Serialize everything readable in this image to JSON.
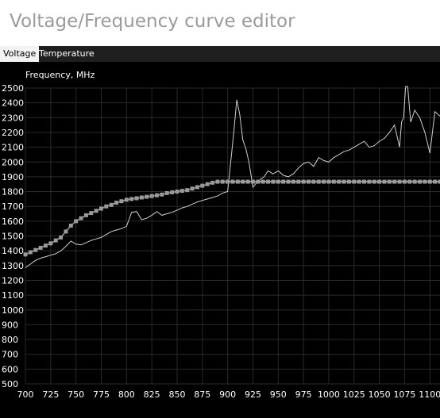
{
  "window": {
    "title": "Voltage/Frequency curve editor"
  },
  "tabs": [
    {
      "label": "Voltage",
      "active": true
    },
    {
      "label": "Temperature",
      "active": false
    }
  ],
  "chart_data": {
    "type": "line",
    "ylabel": "Frequency, MHz",
    "xlabel": "",
    "xlim": [
      700,
      1110
    ],
    "ylim": [
      500,
      2500
    ],
    "x_ticks": [
      700,
      725,
      750,
      775,
      800,
      825,
      850,
      875,
      900,
      925,
      950,
      975,
      1000,
      1025,
      1050,
      1075,
      1100
    ],
    "y_ticks": [
      500,
      600,
      700,
      800,
      900,
      1000,
      1100,
      1200,
      1300,
      1400,
      1500,
      1600,
      1700,
      1800,
      1900,
      2000,
      2100,
      2200,
      2300,
      2400,
      2500
    ],
    "grid": true,
    "colors": {
      "background": "#000000",
      "grid": "#2a2a2a",
      "curve_line": "#d0d0d0",
      "curve_points": "#9a9a9a",
      "max_line": "#c8c8c8"
    },
    "series": [
      {
        "style": "line",
        "x": [
          700,
          705,
          710,
          715,
          720,
          725,
          730,
          735,
          740,
          745,
          750,
          755,
          760,
          765,
          770,
          775,
          780,
          785,
          790,
          795,
          800,
          805,
          810,
          815,
          820,
          825,
          830,
          835,
          840,
          845,
          850,
          855,
          860,
          865,
          870,
          875,
          880,
          885,
          890,
          895,
          900,
          903,
          906,
          909,
          912,
          915,
          918,
          921,
          925,
          928,
          932,
          936,
          940,
          945,
          950,
          955,
          960,
          965,
          970,
          975,
          980,
          985,
          990,
          995,
          1000,
          1005,
          1010,
          1015,
          1020,
          1025,
          1030,
          1035,
          1040,
          1045,
          1050,
          1055,
          1060,
          1065,
          1070,
          1072,
          1074,
          1076,
          1078,
          1081,
          1085,
          1090,
          1095,
          1100,
          1105,
          1110
        ],
        "y": [
          1285,
          1310,
          1335,
          1350,
          1360,
          1370,
          1380,
          1400,
          1430,
          1465,
          1445,
          1440,
          1455,
          1470,
          1480,
          1490,
          1510,
          1530,
          1540,
          1550,
          1565,
          1660,
          1665,
          1610,
          1620,
          1640,
          1665,
          1640,
          1650,
          1660,
          1675,
          1690,
          1700,
          1715,
          1730,
          1740,
          1750,
          1760,
          1770,
          1790,
          1800,
          2000,
          2200,
          2420,
          2320,
          2150,
          2090,
          2000,
          1830,
          1855,
          1880,
          1900,
          1940,
          1920,
          1940,
          1910,
          1900,
          1920,
          1960,
          1990,
          2000,
          1970,
          2030,
          2010,
          2000,
          2030,
          2050,
          2070,
          2080,
          2100,
          2120,
          2140,
          2100,
          2110,
          2140,
          2160,
          2200,
          2250,
          2100,
          2270,
          2300,
          2510,
          2510,
          2270,
          2350,
          2300,
          2200,
          2060,
          2340,
          2310
        ]
      },
      {
        "style": "markers",
        "x": [
          700,
          705,
          710,
          715,
          720,
          725,
          730,
          735,
          740,
          745,
          750,
          755,
          760,
          765,
          770,
          775,
          780,
          785,
          790,
          795,
          800,
          805,
          810,
          815,
          820,
          825,
          830,
          835,
          840,
          845,
          850,
          855,
          860,
          865,
          870,
          875,
          880,
          885,
          890,
          895,
          900
        ],
        "y": [
          1375,
          1390,
          1405,
          1420,
          1435,
          1450,
          1470,
          1490,
          1530,
          1570,
          1600,
          1620,
          1640,
          1655,
          1670,
          1685,
          1700,
          1710,
          1725,
          1735,
          1745,
          1750,
          1755,
          1760,
          1765,
          1770,
          1775,
          1780,
          1790,
          1795,
          1800,
          1805,
          1810,
          1820,
          1830,
          1840,
          1850,
          1860,
          1867,
          1867,
          1867
        ]
      },
      {
        "style": "markers-flat",
        "x_start": 900,
        "x_end": 1110,
        "step": 5,
        "y": 1867
      }
    ]
  }
}
